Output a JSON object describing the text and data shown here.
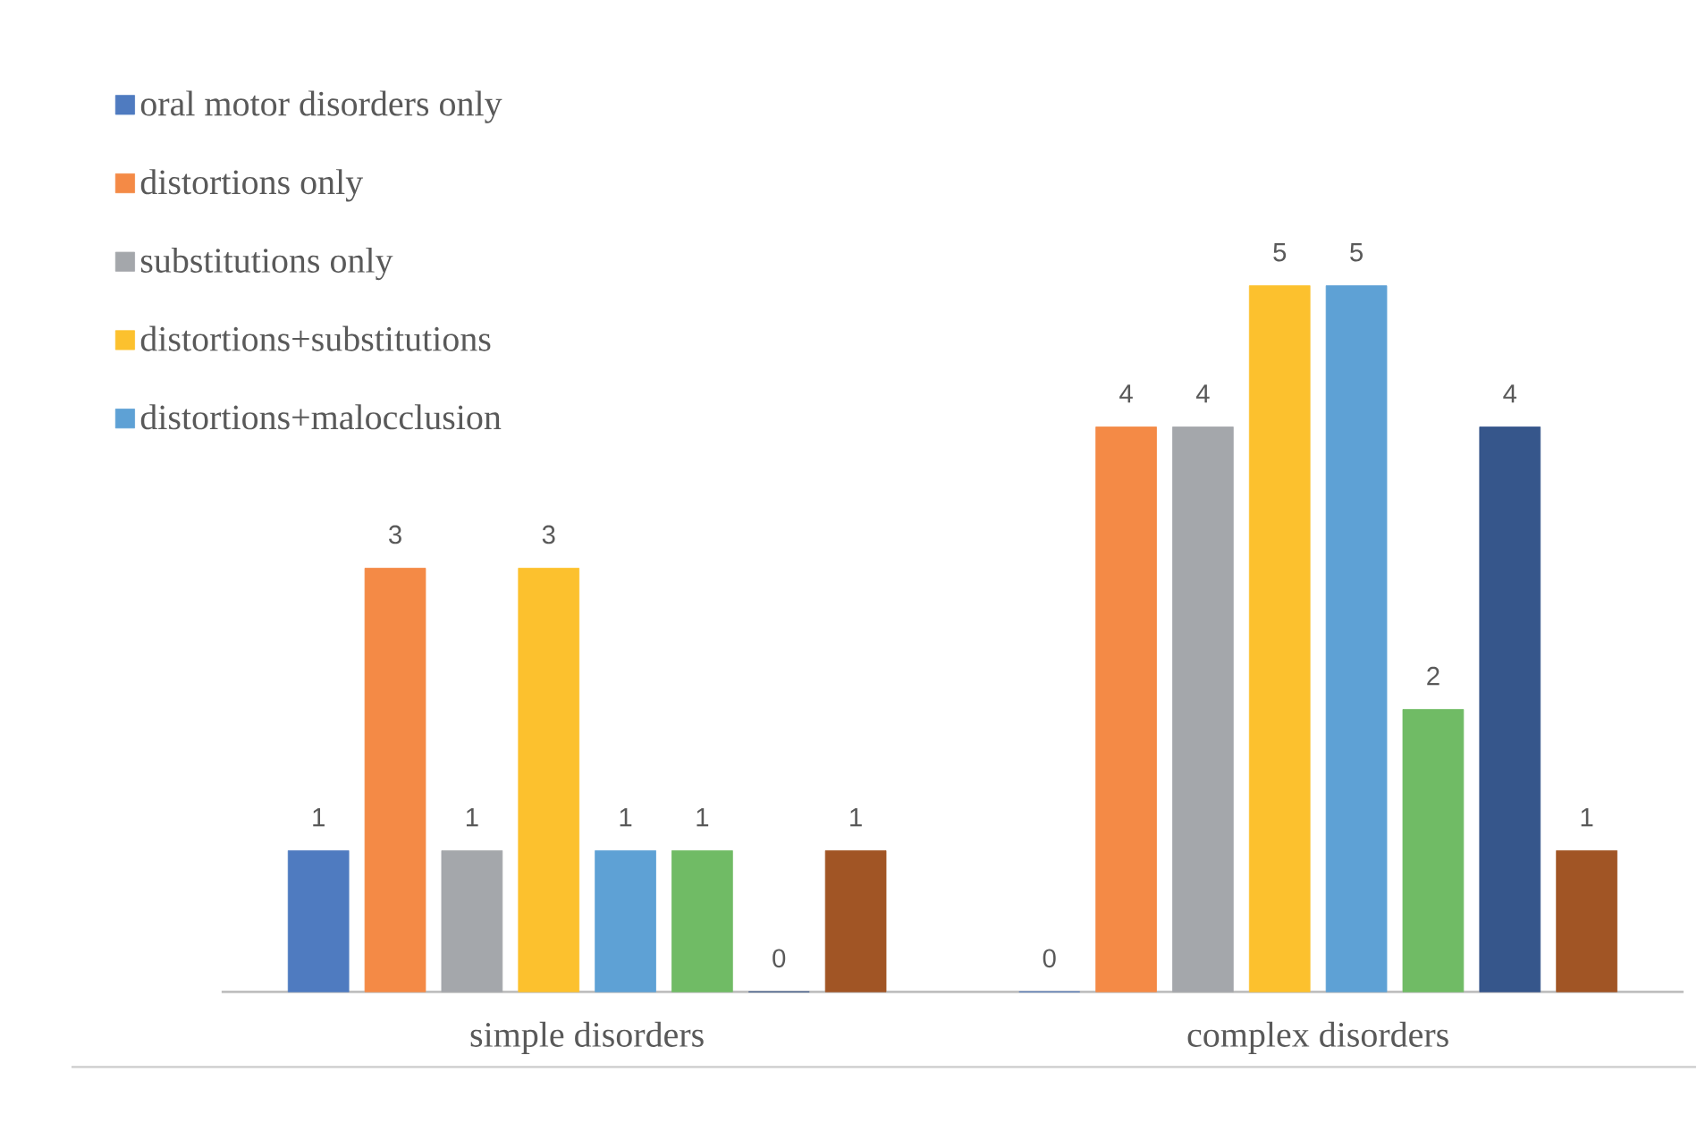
{
  "chart_data": {
    "type": "bar",
    "categories": [
      "simple disorders",
      "complex disorders"
    ],
    "series": [
      {
        "name": "oral motor disorders only",
        "color": "#4f7bc0",
        "values": [
          1,
          0
        ],
        "value_labels": [
          "1",
          "0"
        ]
      },
      {
        "name": "distortions only",
        "color": "#f48a46",
        "values": [
          3,
          4
        ],
        "value_labels": [
          "3",
          "4"
        ]
      },
      {
        "name": "substitutions only",
        "color": "#a4a7ab",
        "values": [
          1,
          4
        ],
        "value_labels": [
          "1",
          "4"
        ]
      },
      {
        "name": "distortions+substitutions",
        "color": "#fcc12e",
        "values": [
          3,
          5
        ],
        "value_labels": [
          "3",
          "5"
        ]
      },
      {
        "name": "distortions+malocclusion",
        "color": "#5ea1d5",
        "values": [
          1,
          5
        ],
        "value_labels": [
          "1",
          "5"
        ]
      },
      {
        "color": "#70bb65",
        "values": [
          1,
          2
        ],
        "value_labels": [
          "1",
          "2"
        ]
      },
      {
        "color": "#36568b",
        "values": [
          0,
          4
        ],
        "value_labels": [
          "0",
          "4"
        ]
      },
      {
        "color": "#a15525",
        "values": [
          1,
          1
        ],
        "value_labels": [
          "1",
          "1"
        ]
      }
    ],
    "legend": "top left"
  }
}
